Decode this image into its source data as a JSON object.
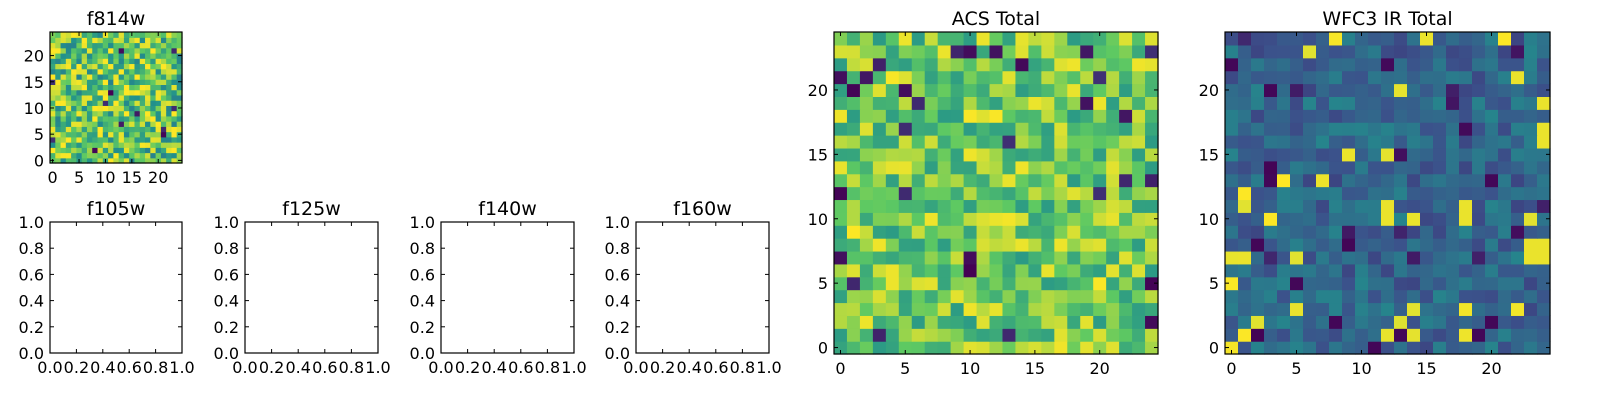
{
  "chart_data": {
    "type": "heatmap",
    "colormap": "viridis",
    "colormap_stops": [
      "#440154",
      "#3b528b",
      "#21918c",
      "#5ec962",
      "#fde725"
    ],
    "panels": [
      {
        "id": "f814w",
        "title": "f814w",
        "type": "heatmap",
        "grid_size": [
          25,
          25
        ],
        "xlim": [
          -0.5,
          24.5
        ],
        "ylim": [
          -0.5,
          24.5
        ],
        "xticks": [
          0,
          5,
          10,
          15,
          20
        ],
        "yticks": [
          0,
          5,
          10,
          15,
          20
        ],
        "xtick_labels": [
          "0",
          "5",
          "10",
          "15",
          "20"
        ],
        "ytick_labels": [
          "0",
          "5",
          "10",
          "15",
          "20"
        ],
        "value_range": [
          0,
          1
        ],
        "mean_level": 0.74,
        "noise": 0.3,
        "seed": 11
      },
      {
        "id": "f105w",
        "title": "f105w",
        "type": "empty",
        "xlim": [
          0,
          1
        ],
        "ylim": [
          0,
          1
        ],
        "xticks": [
          0.0,
          0.2,
          0.4,
          0.6,
          0.8,
          1.0
        ],
        "yticks": [
          0.0,
          0.2,
          0.4,
          0.6,
          0.8,
          1.0
        ],
        "xtick_labels": [
          "0.0",
          "0.2",
          "0.4",
          "0.6",
          "0.8",
          "1.0"
        ],
        "ytick_labels": [
          "0.0",
          "0.2",
          "0.4",
          "0.6",
          "0.8",
          "1.0"
        ]
      },
      {
        "id": "f125w",
        "title": "f125w",
        "type": "empty",
        "xlim": [
          0,
          1
        ],
        "ylim": [
          0,
          1
        ],
        "xticks": [
          0.0,
          0.2,
          0.4,
          0.6,
          0.8,
          1.0
        ],
        "yticks": [
          0.0,
          0.2,
          0.4,
          0.6,
          0.8,
          1.0
        ],
        "xtick_labels": [
          "0.0",
          "0.2",
          "0.4",
          "0.6",
          "0.8",
          "1.0"
        ],
        "ytick_labels": [
          "0.0",
          "0.2",
          "0.4",
          "0.6",
          "0.8",
          "1.0"
        ]
      },
      {
        "id": "f140w",
        "title": "f140w",
        "type": "empty",
        "xlim": [
          0,
          1
        ],
        "ylim": [
          0,
          1
        ],
        "xticks": [
          0.0,
          0.2,
          0.4,
          0.6,
          0.8,
          1.0
        ],
        "yticks": [
          0.0,
          0.2,
          0.4,
          0.6,
          0.8,
          1.0
        ],
        "xtick_labels": [
          "0.0",
          "0.2",
          "0.4",
          "0.6",
          "0.8",
          "1.0"
        ],
        "ytick_labels": [
          "0.0",
          "0.2",
          "0.4",
          "0.6",
          "0.8",
          "1.0"
        ]
      },
      {
        "id": "f160w",
        "title": "f160w",
        "type": "empty",
        "xlim": [
          0,
          1
        ],
        "ylim": [
          0,
          1
        ],
        "xticks": [
          0.0,
          0.2,
          0.4,
          0.6,
          0.8,
          1.0
        ],
        "yticks": [
          0.0,
          0.2,
          0.4,
          0.6,
          0.8,
          1.0
        ],
        "xtick_labels": [
          "0.0",
          "0.2",
          "0.4",
          "0.6",
          "0.8",
          "1.0"
        ],
        "ytick_labels": [
          "0.0",
          "0.2",
          "0.4",
          "0.6",
          "0.8",
          "1.0"
        ]
      },
      {
        "id": "acs-total",
        "title": "ACS Total",
        "type": "heatmap",
        "grid_size": [
          25,
          25
        ],
        "xlim": [
          -0.5,
          24.5
        ],
        "ylim": [
          -0.5,
          24.5
        ],
        "xticks": [
          0,
          5,
          10,
          15,
          20
        ],
        "yticks": [
          0,
          5,
          10,
          15,
          20
        ],
        "xtick_labels": [
          "0",
          "5",
          "10",
          "15",
          "20"
        ],
        "ytick_labels": [
          "0",
          "5",
          "10",
          "15",
          "20"
        ],
        "value_range": [
          0,
          1
        ],
        "mean_level": 0.76,
        "noise": 0.22,
        "seed": 23
      },
      {
        "id": "wfc3-ir-total",
        "title": "WFC3 IR Total",
        "type": "heatmap",
        "grid_size": [
          25,
          25
        ],
        "xlim": [
          -0.5,
          24.5
        ],
        "ylim": [
          -0.5,
          24.5
        ],
        "xticks": [
          0,
          5,
          10,
          15,
          20
        ],
        "yticks": [
          0,
          5,
          10,
          15,
          20
        ],
        "xtick_labels": [
          "0",
          "5",
          "10",
          "15",
          "20"
        ],
        "ytick_labels": [
          "0",
          "5",
          "10",
          "15",
          "20"
        ],
        "value_range": [
          0,
          1
        ],
        "mean_level": 0.33,
        "noise": 0.12,
        "seed": 37,
        "bright_pixels": [
          [
            12,
            11
          ],
          [
            12,
            10
          ],
          [
            18,
            11
          ],
          [
            18,
            10
          ],
          [
            23,
            8
          ],
          [
            24,
            8
          ],
          [
            23,
            7
          ],
          [
            24,
            7
          ],
          [
            24,
            16
          ],
          [
            24,
            17
          ],
          [
            24,
            19
          ]
        ],
        "dark_pixels": [
          [
            2,
            8
          ],
          [
            3,
            20
          ],
          [
            3,
            13
          ],
          [
            5,
            5
          ],
          [
            11,
            0
          ],
          [
            8,
            2
          ],
          [
            20,
            2
          ],
          [
            19,
            1
          ],
          [
            13,
            1
          ],
          [
            0,
            22
          ],
          [
            20,
            13
          ]
        ]
      }
    ]
  }
}
